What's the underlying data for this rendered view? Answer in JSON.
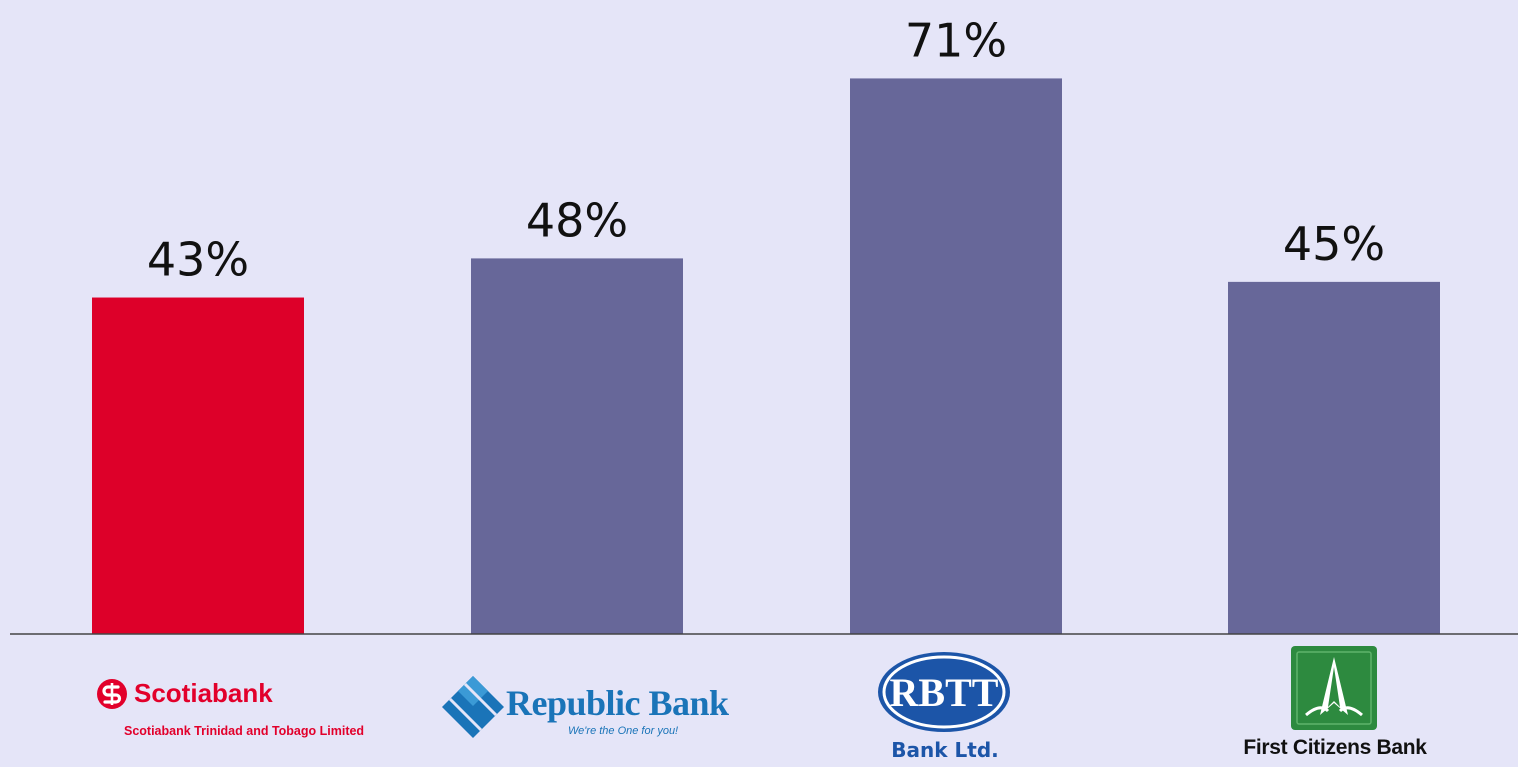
{
  "chart_data": {
    "type": "bar",
    "categories": [
      "Scotiabank",
      "Republic Bank",
      "RBTT Bank Ltd.",
      "First Citizens Bank"
    ],
    "values": [
      43,
      48,
      71,
      45
    ],
    "value_labels": [
      "43%",
      "48%",
      "71%",
      "45%"
    ],
    "ylim": [
      0,
      80
    ],
    "grid": false,
    "bar_colors": [
      "#dd0029",
      "#676799"
    ]
  },
  "logos": {
    "scotiabank": {
      "name": "Scotiabank",
      "subtitle": "Scotiabank Trinidad and Tobago Limited",
      "icon": "scotiabank-s-icon"
    },
    "republic": {
      "name": "Republic Bank",
      "tagline": "We're the One for you!",
      "icon": "republic-diamond-icon"
    },
    "rbtt": {
      "emblem": "RBTT",
      "subtitle": "Bank Ltd."
    },
    "firstcitizens": {
      "name": "First Citizens Bank",
      "icon": "first-citizens-tree-icon"
    }
  },
  "colors": {
    "background": "#e5e5f8",
    "highlight_bar": "#dd0029",
    "bar": "#676799",
    "scotia_red": "#e2002b",
    "republic_blue": "#1a74b8",
    "rbtt_blue": "#1c55a8",
    "first_citizens_green": "#2d8a3f"
  }
}
